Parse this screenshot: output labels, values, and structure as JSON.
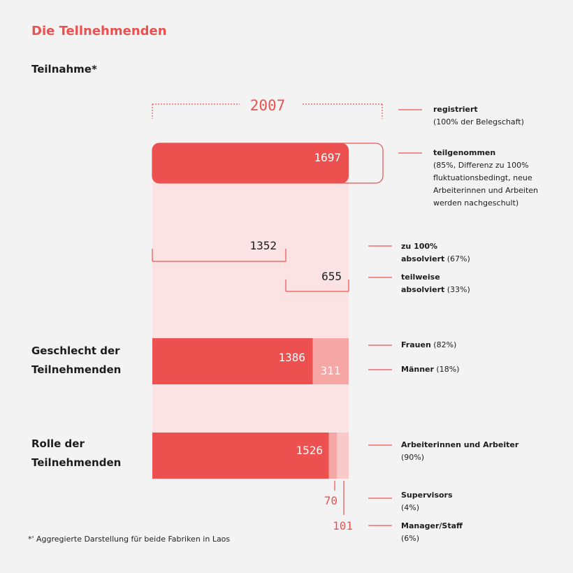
{
  "title": "Die Tellnehmenden",
  "subtitle": "Teilnahme*",
  "sections": {
    "gender": [
      "Geschlecht der",
      "Teilnehmenden"
    ],
    "role": [
      "Rolle der",
      "Teilnehmenden"
    ]
  },
  "footnote": "*' Aggregierte Darstellung für beide Fabriken in Laos",
  "colors": {
    "accent": "#ec5150",
    "light": "#f7a6a6",
    "pale": "#fbe3e3",
    "text": "#1c1c1c"
  },
  "chart_data": {
    "type": "bar",
    "total": 2007,
    "participation": {
      "participated": 1697
    },
    "completion": {
      "full": 1352,
      "partial": 655
    },
    "gender": {
      "women": 1386,
      "men": 311
    },
    "role": {
      "workers": 1526,
      "supervisors": 70,
      "managers": 101
    }
  },
  "legend": {
    "registered": {
      "bold": "registriert",
      "rest": "(100% der Belegschaft)"
    },
    "participated": {
      "bold": "teilgenommen",
      "lines": [
        "(85%, Differenz zu 100%",
        "fluktuationsbedingt, neue",
        "Arbeiterinnen und Arbeiten",
        "werden nachgeschult)"
      ]
    },
    "full": {
      "bold1": "zu 100%",
      "bold2": "absolviert",
      "pct": "(67%)"
    },
    "partial": {
      "bold1": "teilweise",
      "bold2": "absolviert",
      "pct": "(33%)"
    },
    "women": {
      "bold": "Frauen",
      "pct": "(82%)"
    },
    "men": {
      "bold": "Männer",
      "pct": "(18%)"
    },
    "workers": {
      "bold": "Arbeiterinnen und Arbeiter",
      "pct": "(90%)"
    },
    "supervisors": {
      "bold": "Supervisors",
      "pct": "(4%)"
    },
    "managers": {
      "bold": "Manager/Staff",
      "pct": "(6%)"
    }
  }
}
